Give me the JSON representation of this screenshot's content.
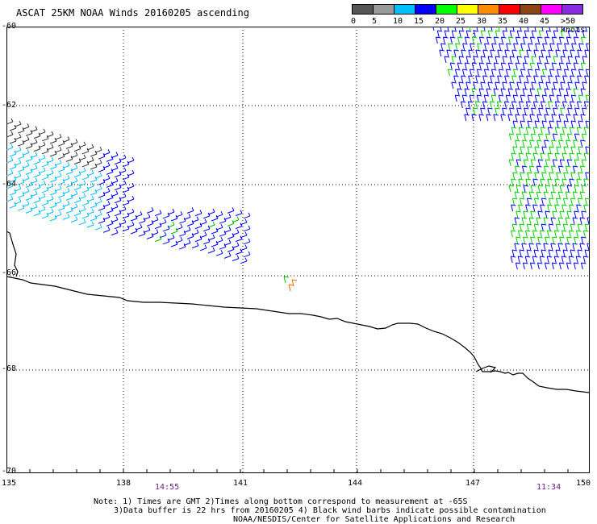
{
  "title": "ASCAT 25KM NOAA Winds 20160205 ascending",
  "legend": {
    "values": [
      "0",
      "5",
      "10",
      "15",
      "20",
      "25",
      "30",
      "35",
      "40",
      "45",
      ">50 knots"
    ],
    "colors": [
      "#555555",
      "#999999",
      "#00bfff",
      "#0000ff",
      "#00ff00",
      "#ffff00",
      "#ff8c00",
      "#ff0000",
      "#8b4513",
      "#ff00ff",
      "#8a2be2"
    ]
  },
  "map": {
    "latitudes": [
      "-60",
      "-62",
      "-64",
      "-66",
      "-68",
      "-70"
    ],
    "longitudes": [
      "135",
      "138",
      "141",
      "144",
      "147",
      "150"
    ],
    "times": [
      "14:55",
      "11:34"
    ],
    "colors": {
      "coast": "#000000",
      "grid": "#000000",
      "time": "#6a1a8a"
    }
  },
  "notes": {
    "line1": "Note: 1) Times are GMT 2)Times along bottom correspond to measurement at -65S",
    "line2": "3)Data buffer is 22 hrs from 20160205 4) Black wind barbs indicate possible contamination",
    "line3": "NOAA/NESDIS/Center for Satellite Applications and Research"
  }
}
